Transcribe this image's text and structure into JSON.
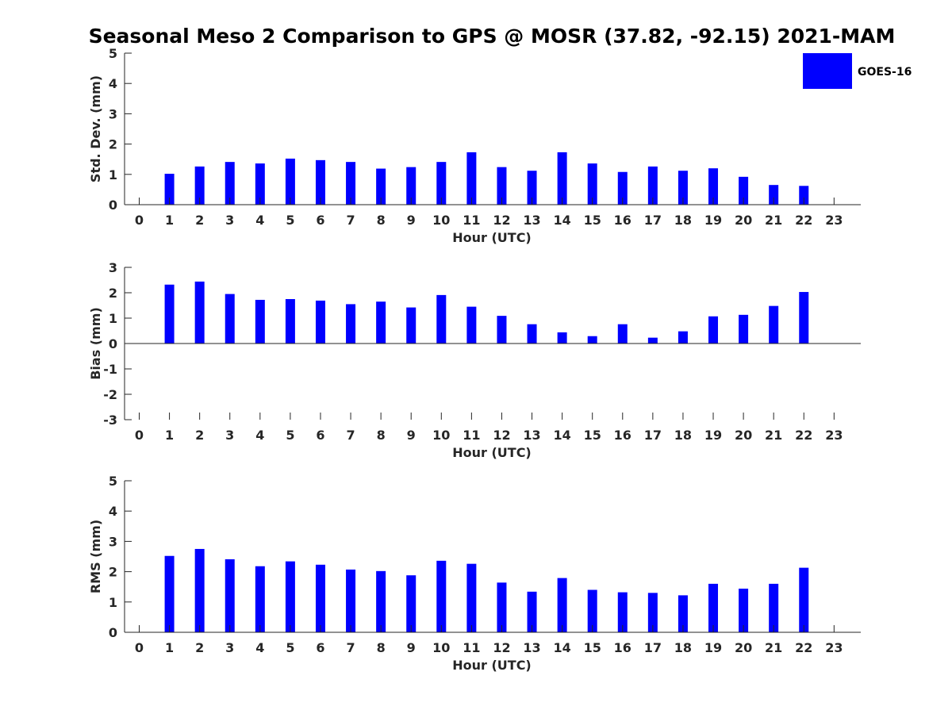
{
  "title": "Seasonal Meso 2 Comparison to GPS @ MOSR (37.82, -92.15) 2021-MAM",
  "legend": {
    "label": "GOES-16",
    "color": "#0000FF"
  },
  "chart_data": [
    {
      "type": "bar",
      "xlabel": "Hour (UTC)",
      "ylabel": "Std. Dev. (mm)",
      "ylim": [
        0,
        5
      ],
      "yticks": [
        "0",
        "1",
        "2",
        "3",
        "4",
        "5"
      ],
      "categories": [
        "0",
        "1",
        "2",
        "3",
        "4",
        "5",
        "6",
        "7",
        "8",
        "9",
        "10",
        "11",
        "12",
        "13",
        "14",
        "15",
        "16",
        "17",
        "18",
        "19",
        "20",
        "21",
        "22",
        "23"
      ],
      "series": [
        {
          "name": "GOES-16",
          "color": "#0000FF",
          "values": [
            null,
            1.02,
            1.26,
            1.41,
            1.36,
            1.52,
            1.47,
            1.41,
            1.19,
            1.24,
            1.41,
            1.73,
            1.24,
            1.12,
            1.73,
            1.36,
            1.08,
            1.26,
            1.12,
            1.2,
            0.92,
            0.65,
            0.62,
            null
          ]
        }
      ],
      "grid": false
    },
    {
      "type": "bar",
      "xlabel": "Hour (UTC)",
      "ylabel": "Bias (mm)",
      "ylim": [
        -3,
        3
      ],
      "yticks": [
        "-3",
        "-2",
        "-1",
        "0",
        "1",
        "2",
        "3"
      ],
      "categories": [
        "0",
        "1",
        "2",
        "3",
        "4",
        "5",
        "6",
        "7",
        "8",
        "9",
        "10",
        "11",
        "12",
        "13",
        "14",
        "15",
        "16",
        "17",
        "18",
        "19",
        "20",
        "21",
        "22",
        "23"
      ],
      "series": [
        {
          "name": "GOES-16",
          "color": "#0000FF",
          "values": [
            null,
            2.32,
            2.44,
            1.95,
            1.72,
            1.75,
            1.69,
            1.55,
            1.65,
            1.42,
            1.91,
            1.45,
            1.09,
            0.76,
            0.44,
            0.29,
            0.76,
            0.23,
            0.48,
            1.07,
            1.13,
            1.48,
            2.03,
            null
          ]
        }
      ],
      "grid": false
    },
    {
      "type": "bar",
      "xlabel": "Hour (UTC)",
      "ylabel": "RMS (mm)",
      "ylim": [
        0,
        5
      ],
      "yticks": [
        "0",
        "1",
        "2",
        "3",
        "4",
        "5"
      ],
      "categories": [
        "0",
        "1",
        "2",
        "3",
        "4",
        "5",
        "6",
        "7",
        "8",
        "9",
        "10",
        "11",
        "12",
        "13",
        "14",
        "15",
        "16",
        "17",
        "18",
        "19",
        "20",
        "21",
        "22",
        "23"
      ],
      "series": [
        {
          "name": "GOES-16",
          "color": "#0000FF",
          "values": [
            null,
            2.52,
            2.75,
            2.41,
            2.18,
            2.34,
            2.23,
            2.07,
            2.02,
            1.88,
            2.36,
            2.26,
            1.64,
            1.34,
            1.79,
            1.4,
            1.32,
            1.3,
            1.22,
            1.6,
            1.44,
            1.6,
            2.13,
            null
          ]
        }
      ],
      "grid": false
    }
  ]
}
